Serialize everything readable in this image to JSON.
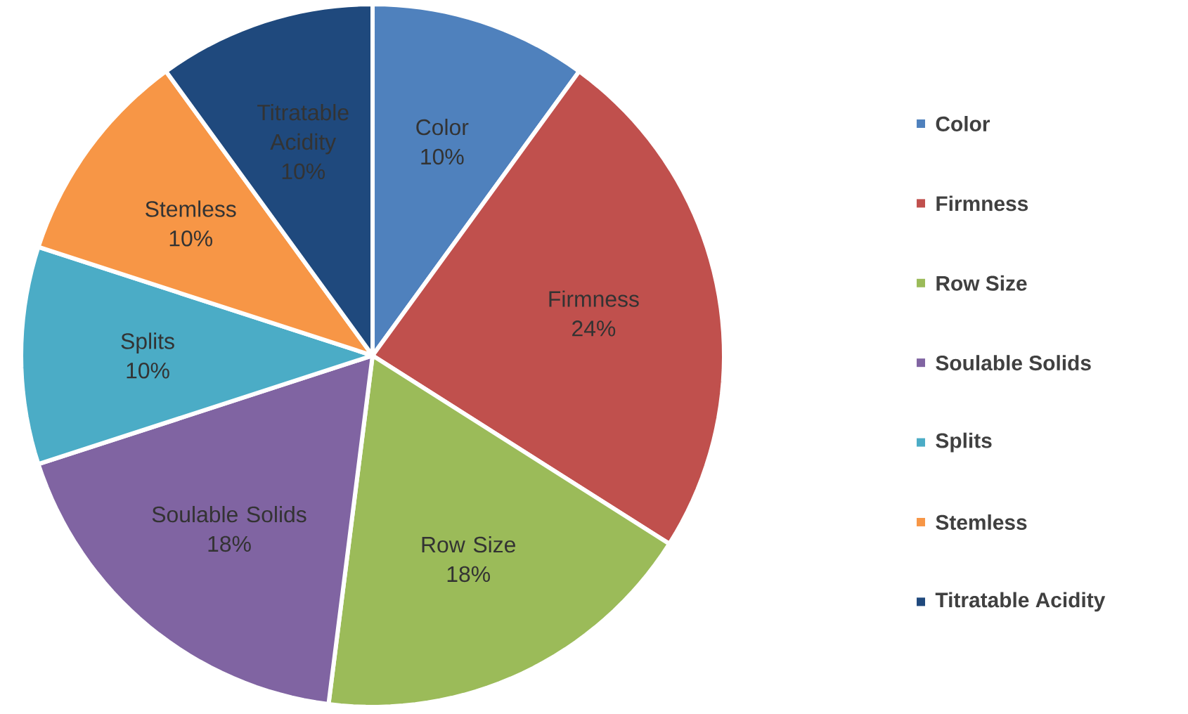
{
  "chart_data": {
    "type": "pie",
    "categories": [
      "Color",
      "Firmness",
      "Row Size",
      "Soulable Solids",
      "Splits",
      "Stemless",
      "Titratable Acidity"
    ],
    "values": [
      10,
      24,
      18,
      18,
      10,
      10,
      10
    ],
    "value_labels": [
      "10%",
      "24%",
      "18%",
      "18%",
      "10%",
      "10%",
      "10%"
    ],
    "colors": [
      "#4f81bd",
      "#c0504d",
      "#9bbb59",
      "#8064a2",
      "#4bacc6",
      "#f79646",
      "#1f497d"
    ],
    "legend": "right"
  }
}
